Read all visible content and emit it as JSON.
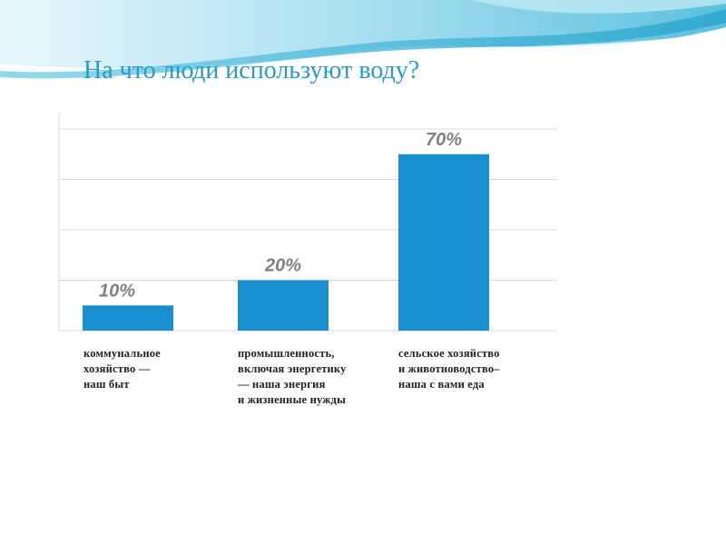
{
  "slide": {
    "title": "На что люди используют воду?"
  },
  "colors": {
    "title": "#2a9bc0",
    "bar": "#1a8fcf",
    "label": "#808080",
    "grid": "#d9d9d9",
    "wave_light": "#bfe9f3",
    "wave_mid": "#7fd1e8",
    "wave_dark": "#3fb4d6"
  },
  "chart_data": {
    "type": "bar",
    "title": "",
    "xlabel": "",
    "ylabel": "",
    "categories": [
      "коммунальное\nхозяйство —\nнаш быт",
      "промышленность,\nвключая энергетику\n— наша энергия\nи жизненные нужды",
      "сельское хозяйство\nи животноводство–\nнаша с вами еда"
    ],
    "values": [
      10,
      20,
      70
    ],
    "data_labels": [
      "10%",
      "20%",
      "70%"
    ],
    "ylim": [
      0,
      80
    ],
    "grid": true,
    "legend": "none"
  }
}
